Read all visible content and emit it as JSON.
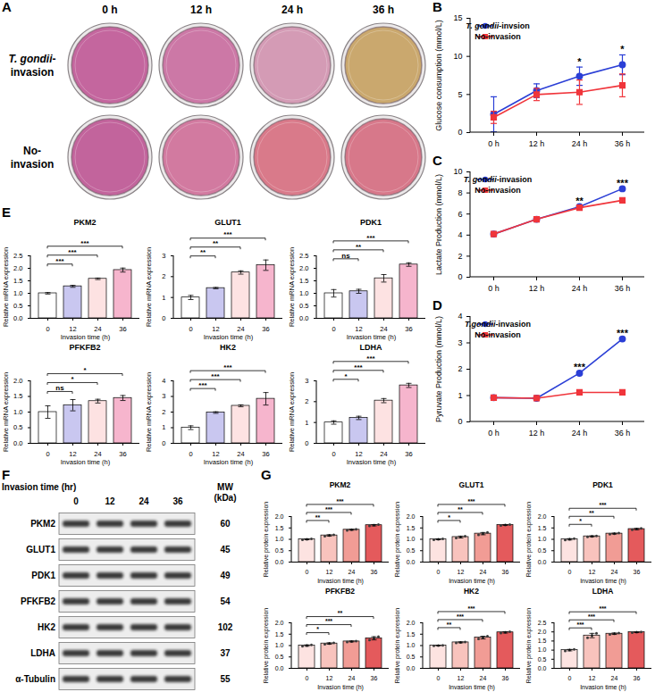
{
  "panel_A": {
    "label": "A",
    "columns": [
      "0 h",
      "12 h",
      "24 h",
      "36 h"
    ],
    "rows": [
      {
        "name": "T. gondii-invasion",
        "colors": [
          "#c4669e",
          "#cc78a6",
          "#d49bb5",
          "#caa86e"
        ]
      },
      {
        "name": "No-invasion",
        "colors": [
          "#c2649c",
          "#d27aa0",
          "#d97a8a",
          "#d7788a"
        ]
      }
    ]
  },
  "panel_F": {
    "label": "F",
    "header": "Invasion time (hr)",
    "lanes": [
      "0",
      "12",
      "24",
      "36"
    ],
    "mw_header": "MW (kDa)",
    "rows": [
      {
        "name": "PKM2",
        "mw": 60
      },
      {
        "name": "GLUT1",
        "mw": 45
      },
      {
        "name": "PDK1",
        "mw": 49
      },
      {
        "name": "PFKFB2",
        "mw": 54
      },
      {
        "name": "HK2",
        "mw": 102
      },
      {
        "name": "LDHA",
        "mw": 37
      },
      {
        "name": "α-Tubulin",
        "mw": 55
      }
    ]
  },
  "chart_data": [
    {
      "type": "line",
      "panel_label": "B",
      "ylabel": "Glucose consumption (mmol/L)",
      "categories": [
        "0 h",
        "12 h",
        "24 h",
        "36 h"
      ],
      "series": [
        {
          "name": "T. gondii-invsion",
          "color": "#2b3fd6",
          "marker": "circle",
          "values": [
            2.4,
            5.5,
            7.4,
            8.9
          ],
          "errors": [
            2.3,
            0.9,
            1.2,
            1.3
          ]
        },
        {
          "name": "No-invasion",
          "color": "#f0353b",
          "marker": "square",
          "values": [
            2.0,
            5.0,
            5.3,
            6.2
          ],
          "errors": [
            0.8,
            0.8,
            1.6,
            1.5
          ]
        }
      ],
      "ylim": [
        0,
        15
      ],
      "yticks": [
        0,
        5,
        10,
        15
      ],
      "legend": "top-left",
      "annotations": [
        {
          "x": "24 h",
          "text": "*"
        },
        {
          "x": "36 h",
          "text": "*"
        }
      ]
    },
    {
      "type": "line",
      "panel_label": "C",
      "ylabel": "Lactate Production (mmol/L)",
      "categories": [
        "0 h",
        "12 h",
        "24 h",
        "36 h"
      ],
      "series": [
        {
          "name": "T. gondii-invasion",
          "color": "#2b3fd6",
          "marker": "circle",
          "values": [
            4.1,
            5.5,
            6.7,
            8.4
          ]
        },
        {
          "name": "No-invasion",
          "color": "#f0353b",
          "marker": "square",
          "values": [
            4.1,
            5.5,
            6.6,
            7.3
          ]
        }
      ],
      "ylim": [
        0,
        10
      ],
      "yticks": [
        0,
        2,
        4,
        6,
        8,
        10
      ],
      "legend": "top-left",
      "annotations": [
        {
          "x": "24 h",
          "text": "**"
        },
        {
          "x": "36 h",
          "text": "***"
        }
      ]
    },
    {
      "type": "line",
      "panel_label": "D",
      "ylabel": "Pyruvate Production (mmol/L)",
      "categories": [
        "0 h",
        "12 h",
        "24 h",
        "36 h"
      ],
      "series": [
        {
          "name": "T.gondii-invasion",
          "color": "#2b3fd6",
          "marker": "circle",
          "values": [
            0.92,
            0.9,
            1.85,
            3.15
          ]
        },
        {
          "name": "No-invasion",
          "color": "#f0353b",
          "marker": "square",
          "values": [
            0.92,
            0.9,
            1.12,
            1.12
          ]
        }
      ],
      "ylim": [
        0,
        4
      ],
      "yticks": [
        0,
        1,
        2,
        3,
        4
      ],
      "legend": "top-left",
      "annotations": [
        {
          "x": "24 h",
          "text": "***"
        },
        {
          "x": "36 h",
          "text": "***"
        }
      ]
    },
    {
      "type": "bar",
      "panel_label": "E",
      "title": "PKM2",
      "xlabel": "Invasion time (h)",
      "ylabel": "Relative mRNA expression",
      "categories": [
        "0",
        "12",
        "24",
        "36"
      ],
      "values": [
        1.0,
        1.28,
        1.58,
        1.93
      ],
      "errors": [
        0.03,
        0.04,
        0.03,
        0.08
      ],
      "colors": [
        "#ffffff",
        "#c9c7f0",
        "#fde2e2",
        "#f6b5cd"
      ],
      "ylim": [
        0,
        2.5
      ],
      "yticks": [
        {
          "value": 0,
          "label": "0.0"
        },
        {
          "value": 0.5,
          "label": "0.5"
        },
        {
          "value": 1,
          "label": "1.0"
        },
        {
          "value": 1.5,
          "label": "1.5"
        },
        {
          "value": 2,
          "label": "2.0"
        },
        {
          "value": 2.5,
          "label": "2.5"
        }
      ],
      "annotations": [
        {
          "from": "0",
          "to": "12",
          "text": "***"
        },
        {
          "from": "0",
          "to": "24",
          "text": "***"
        },
        {
          "from": "0",
          "to": "36",
          "text": "***"
        }
      ]
    },
    {
      "type": "bar",
      "title": "GLUT1",
      "xlabel": "Invasion time (h)",
      "ylabel": "Relative mRNA expression",
      "categories": [
        "0",
        "12",
        "24",
        "36"
      ],
      "values": [
        1.0,
        1.45,
        2.2,
        2.55
      ],
      "errors": [
        0.1,
        0.03,
        0.08,
        0.25
      ],
      "colors": [
        "#ffffff",
        "#c9c7f0",
        "#fde2e2",
        "#f6b5cd"
      ],
      "ylim": [
        0,
        3
      ],
      "yticks": [
        0,
        1,
        2,
        3
      ],
      "annotations": [
        {
          "from": "0",
          "to": "12",
          "text": "**"
        },
        {
          "from": "0",
          "to": "24",
          "text": "**"
        },
        {
          "from": "0",
          "to": "36",
          "text": "***"
        }
      ]
    },
    {
      "type": "bar",
      "title": "PDK1",
      "xlabel": "Invasion time (h)",
      "ylabel": "Relative mRNA expression",
      "categories": [
        "0",
        "12",
        "24",
        "36"
      ],
      "values": [
        1.0,
        1.08,
        1.6,
        2.15
      ],
      "errors": [
        0.15,
        0.08,
        0.15,
        0.07
      ],
      "colors": [
        "#ffffff",
        "#c9c7f0",
        "#fde2e2",
        "#f6b5cd"
      ],
      "ylim": [
        0,
        2.5
      ],
      "yticks": [
        {
          "value": 0,
          "label": "0.0"
        },
        {
          "value": 0.5,
          "label": "0.5"
        },
        {
          "value": 1,
          "label": "1.0"
        },
        {
          "value": 1.5,
          "label": "1.5"
        },
        {
          "value": 2,
          "label": "2.0"
        },
        {
          "value": 2.5,
          "label": "2.5"
        }
      ],
      "annotations": [
        {
          "from": "0",
          "to": "12",
          "text": "ns"
        },
        {
          "from": "0",
          "to": "24",
          "text": "**"
        },
        {
          "from": "0",
          "to": "36",
          "text": "***"
        }
      ]
    },
    {
      "type": "bar",
      "title": "PFKFB2",
      "xlabel": "Invasion time (h)",
      "ylabel": "Relative mRNA expression",
      "categories": [
        "0",
        "12",
        "24",
        "36"
      ],
      "values": [
        1.0,
        1.22,
        1.35,
        1.45
      ],
      "errors": [
        0.2,
        0.18,
        0.06,
        0.08
      ],
      "colors": [
        "#ffffff",
        "#c9c7f0",
        "#fde2e2",
        "#f6b5cd"
      ],
      "ylim": [
        0,
        2
      ],
      "yticks": [
        {
          "value": 0,
          "label": "0.0"
        },
        {
          "value": 0.5,
          "label": "0.5"
        },
        {
          "value": 1,
          "label": "1.0"
        },
        {
          "value": 1.5,
          "label": "1.5"
        },
        {
          "value": 2,
          "label": "2.0"
        }
      ],
      "annotations": [
        {
          "from": "0",
          "to": "12",
          "text": "ns"
        },
        {
          "from": "0",
          "to": "24",
          "text": "*"
        },
        {
          "from": "0",
          "to": "36",
          "text": "*"
        }
      ]
    },
    {
      "type": "bar",
      "title": "HK2",
      "xlabel": "Invasion time (h)",
      "ylabel": "Relative mRNA expression",
      "categories": [
        "0",
        "12",
        "24",
        "36"
      ],
      "values": [
        1.0,
        1.97,
        2.4,
        2.85
      ],
      "errors": [
        0.12,
        0.05,
        0.06,
        0.4
      ],
      "colors": [
        "#ffffff",
        "#c9c7f0",
        "#fde2e2",
        "#f6b5cd"
      ],
      "ylim": [
        0,
        4
      ],
      "yticks": [
        0,
        1,
        2,
        3,
        4
      ],
      "annotations": [
        {
          "from": "0",
          "to": "12",
          "text": "***"
        },
        {
          "from": "0",
          "to": "24",
          "text": "***"
        },
        {
          "from": "0",
          "to": "36",
          "text": "***"
        }
      ]
    },
    {
      "type": "bar",
      "title": "LDHA",
      "xlabel": "Invasion time (h)",
      "ylabel": "Relative mRNA expression",
      "categories": [
        "0",
        "12",
        "24",
        "36"
      ],
      "values": [
        1.0,
        1.22,
        2.05,
        2.78
      ],
      "errors": [
        0.08,
        0.08,
        0.1,
        0.1
      ],
      "colors": [
        "#ffffff",
        "#c9c7f0",
        "#fde2e2",
        "#f6b5cd"
      ],
      "ylim": [
        0,
        3
      ],
      "yticks": [
        0,
        1,
        2,
        3
      ],
      "annotations": [
        {
          "from": "0",
          "to": "12",
          "text": "*"
        },
        {
          "from": "0",
          "to": "24",
          "text": "***"
        },
        {
          "from": "0",
          "to": "36",
          "text": "***"
        }
      ]
    },
    {
      "type": "bar",
      "panel_label": "G",
      "title": "PKM2",
      "xlabel": "Invasion time (h)",
      "ylabel": "Relative protein expression",
      "categories": [
        "0",
        "12",
        "24",
        "36"
      ],
      "values": [
        1.0,
        1.17,
        1.42,
        1.62
      ],
      "errors": [
        0.02,
        0.03,
        0.02,
        0.03
      ],
      "points": [
        [
          0.98,
          1.0,
          1.02
        ],
        [
          1.14,
          1.17,
          1.2
        ],
        [
          1.39,
          1.42,
          1.44
        ],
        [
          1.59,
          1.62,
          1.65
        ]
      ],
      "colors": [
        "#fde3e1",
        "#f8c3bd",
        "#f19c95",
        "#e45a5c"
      ],
      "ylim": [
        0,
        2
      ],
      "yticks": [
        {
          "value": 0,
          "label": "0.0"
        },
        {
          "value": 0.5,
          "label": "0.5"
        },
        {
          "value": 1,
          "label": "1.0"
        },
        {
          "value": 1.5,
          "label": "1.5"
        },
        {
          "value": 2,
          "label": "2.0"
        }
      ],
      "annotations": [
        {
          "from": "0",
          "to": "12",
          "text": "**"
        },
        {
          "from": "0",
          "to": "24",
          "text": "***"
        },
        {
          "from": "0",
          "to": "36",
          "text": "***"
        }
      ]
    },
    {
      "type": "bar",
      "title": "GLUT1",
      "xlabel": "Invasion time (h)",
      "ylabel": "Relative protein expression",
      "categories": [
        "0",
        "12",
        "24",
        "36"
      ],
      "values": [
        1.0,
        1.1,
        1.25,
        1.63
      ],
      "errors": [
        0.02,
        0.04,
        0.05,
        0.02
      ],
      "points": [
        [
          0.98,
          1.0,
          1.02
        ],
        [
          1.06,
          1.1,
          1.14
        ],
        [
          1.2,
          1.25,
          1.3
        ],
        [
          1.61,
          1.63,
          1.65
        ]
      ],
      "colors": [
        "#fde3e1",
        "#f8c3bd",
        "#f19c95",
        "#e45a5c"
      ],
      "ylim": [
        0,
        2
      ],
      "yticks": [
        {
          "value": 0,
          "label": "0.0"
        },
        {
          "value": 0.5,
          "label": "0.5"
        },
        {
          "value": 1,
          "label": "1.0"
        },
        {
          "value": 1.5,
          "label": "1.5"
        },
        {
          "value": 2,
          "label": "2.0"
        }
      ],
      "annotations": [
        {
          "from": "0",
          "to": "12",
          "text": "*"
        },
        {
          "from": "0",
          "to": "24",
          "text": "**"
        },
        {
          "from": "0",
          "to": "36",
          "text": "***"
        }
      ]
    },
    {
      "type": "bar",
      "title": "PDK1",
      "xlabel": "Invasion time (h)",
      "ylabel": "Relative protein expression",
      "categories": [
        "0",
        "12",
        "24",
        "36"
      ],
      "values": [
        1.0,
        1.13,
        1.25,
        1.45
      ],
      "errors": [
        0.03,
        0.02,
        0.02,
        0.03
      ],
      "points": [
        [
          0.97,
          1.0,
          1.03
        ],
        [
          1.11,
          1.13,
          1.15
        ],
        [
          1.23,
          1.25,
          1.27
        ],
        [
          1.42,
          1.45,
          1.48
        ]
      ],
      "colors": [
        "#fde3e1",
        "#f8c3bd",
        "#f19c95",
        "#e45a5c"
      ],
      "ylim": [
        0,
        2
      ],
      "yticks": [
        {
          "value": 0,
          "label": "0.0"
        },
        {
          "value": 0.5,
          "label": "0.5"
        },
        {
          "value": 1,
          "label": "1.0"
        },
        {
          "value": 1.5,
          "label": "1.5"
        },
        {
          "value": 2,
          "label": "2.0"
        }
      ],
      "annotations": [
        {
          "from": "0",
          "to": "12",
          "text": "*"
        },
        {
          "from": "0",
          "to": "24",
          "text": "**"
        },
        {
          "from": "0",
          "to": "36",
          "text": "***"
        }
      ]
    },
    {
      "type": "bar",
      "title": "PFKFB2",
      "xlabel": "Invasion time (h)",
      "ylabel": "Relative protein expression",
      "categories": [
        "0",
        "12",
        "24",
        "36"
      ],
      "values": [
        1.0,
        1.09,
        1.18,
        1.32
      ],
      "errors": [
        0.03,
        0.03,
        0.02,
        0.07
      ],
      "points": [
        [
          0.97,
          1.0,
          1.03
        ],
        [
          1.06,
          1.09,
          1.12
        ],
        [
          1.16,
          1.18,
          1.2
        ],
        [
          1.25,
          1.32,
          1.39
        ]
      ],
      "colors": [
        "#fde3e1",
        "#f8c3bd",
        "#f19c95",
        "#e45a5c"
      ],
      "ylim": [
        0,
        2
      ],
      "yticks": [
        {
          "value": 0,
          "label": "0.0"
        },
        {
          "value": 0.5,
          "label": "0.5"
        },
        {
          "value": 1,
          "label": "1.0"
        },
        {
          "value": 1.5,
          "label": "1.5"
        },
        {
          "value": 2,
          "label": "2.0"
        }
      ],
      "annotations": [
        {
          "from": "0",
          "to": "12",
          "text": "*"
        },
        {
          "from": "0",
          "to": "24",
          "text": "***"
        },
        {
          "from": "0",
          "to": "36",
          "text": "**"
        }
      ]
    },
    {
      "type": "bar",
      "title": "HK2",
      "xlabel": "Invasion time (h)",
      "ylabel": "Relative protein expression",
      "categories": [
        "0",
        "12",
        "24",
        "36"
      ],
      "values": [
        1.0,
        1.14,
        1.35,
        1.58
      ],
      "errors": [
        0.01,
        0.02,
        0.06,
        0.03
      ],
      "points": [
        [
          0.99,
          1.0,
          1.01
        ],
        [
          1.12,
          1.14,
          1.16
        ],
        [
          1.29,
          1.35,
          1.41
        ],
        [
          1.55,
          1.58,
          1.61
        ]
      ],
      "colors": [
        "#fde3e1",
        "#f8c3bd",
        "#f19c95",
        "#e45a5c"
      ],
      "ylim": [
        0,
        2
      ],
      "yticks": [
        {
          "value": 0,
          "label": "0.0"
        },
        {
          "value": 0.5,
          "label": "0.5"
        },
        {
          "value": 1,
          "label": "1.0"
        },
        {
          "value": 1.5,
          "label": "1.5"
        },
        {
          "value": 2,
          "label": "2.0"
        }
      ],
      "annotations": [
        {
          "from": "0",
          "to": "12",
          "text": "**"
        },
        {
          "from": "0",
          "to": "24",
          "text": "***"
        },
        {
          "from": "0",
          "to": "36",
          "text": "***"
        }
      ]
    },
    {
      "type": "bar",
      "title": "LDHA",
      "xlabel": "Invasion time (h)",
      "ylabel": "Relative protein expression",
      "categories": [
        "0",
        "12",
        "24",
        "36"
      ],
      "values": [
        1.0,
        1.8,
        1.9,
        1.98
      ],
      "errors": [
        0.04,
        0.12,
        0.04,
        0.02
      ],
      "points": [
        [
          0.96,
          1.0,
          1.04
        ],
        [
          1.68,
          1.8,
          1.92
        ],
        [
          1.86,
          1.9,
          1.94
        ],
        [
          1.96,
          1.98,
          2.0
        ]
      ],
      "colors": [
        "#fde3e1",
        "#f8c3bd",
        "#f19c95",
        "#e45a5c"
      ],
      "ylim": [
        0,
        2.5
      ],
      "yticks": [
        {
          "value": 0,
          "label": "0.0"
        },
        {
          "value": 0.5,
          "label": "0.5"
        },
        {
          "value": 1,
          "label": "1.0"
        },
        {
          "value": 1.5,
          "label": "1.5"
        },
        {
          "value": 2,
          "label": "2.0"
        },
        {
          "value": 2.5,
          "label": "2.5"
        }
      ],
      "annotations": [
        {
          "from": "0",
          "to": "12",
          "text": "***"
        },
        {
          "from": "0",
          "to": "24",
          "text": "***"
        },
        {
          "from": "0",
          "to": "36",
          "text": "***"
        }
      ]
    }
  ]
}
